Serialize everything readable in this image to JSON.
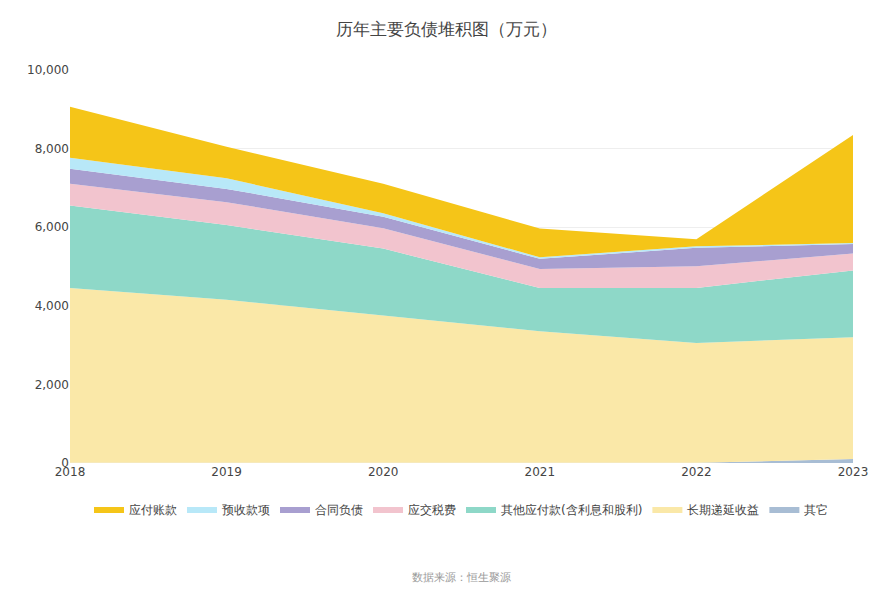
{
  "chart_data": {
    "type": "area",
    "title": "历年主要负债堆积图（万元）",
    "annotations": [
      "数据来源：恒生聚源"
    ],
    "stacked": true,
    "x": [
      2018,
      2019,
      2020,
      2021,
      2022,
      2023
    ],
    "series": [
      {
        "name": "其它",
        "color": "#A8BDD4",
        "values": [
          5,
          5,
          5,
          5,
          5,
          100
        ]
      },
      {
        "name": "长期递延收益",
        "color": "#FAE8A8",
        "values": [
          4450,
          4150,
          3750,
          3350,
          3050,
          3100
        ]
      },
      {
        "name": "其他应付款(含利息和股利)",
        "color": "#8ED8C8",
        "values": [
          2100,
          1900,
          1700,
          1100,
          1400,
          1700
        ]
      },
      {
        "name": "应交税费",
        "color": "#F2C4CE",
        "values": [
          550,
          580,
          520,
          480,
          550,
          430
        ]
      },
      {
        "name": "合同负债",
        "color": "#A89FD0",
        "values": [
          380,
          340,
          290,
          260,
          470,
          240
        ]
      },
      {
        "name": "预收款项",
        "color": "#B8E8F8",
        "values": [
          280,
          270,
          90,
          40,
          40,
          25
        ]
      },
      {
        "name": "应付账款",
        "color": "#F5C518",
        "values": [
          1300,
          800,
          750,
          730,
          180,
          2750
        ]
      }
    ],
    "xlim": [
      2018,
      2023
    ],
    "xticks": [
      2018,
      2019,
      2020,
      2021,
      2022,
      2023
    ],
    "ylim": [
      0,
      10000
    ],
    "yticks": [
      0,
      {
        "value": 2000,
        "label": "2,000"
      },
      {
        "value": 4000,
        "label": "4,000"
      },
      {
        "value": 6000,
        "label": "6,000"
      },
      {
        "value": 8000,
        "label": "8,000"
      },
      {
        "value": 10000,
        "label": "10,000"
      }
    ],
    "grid": true,
    "legend": "bottom"
  }
}
